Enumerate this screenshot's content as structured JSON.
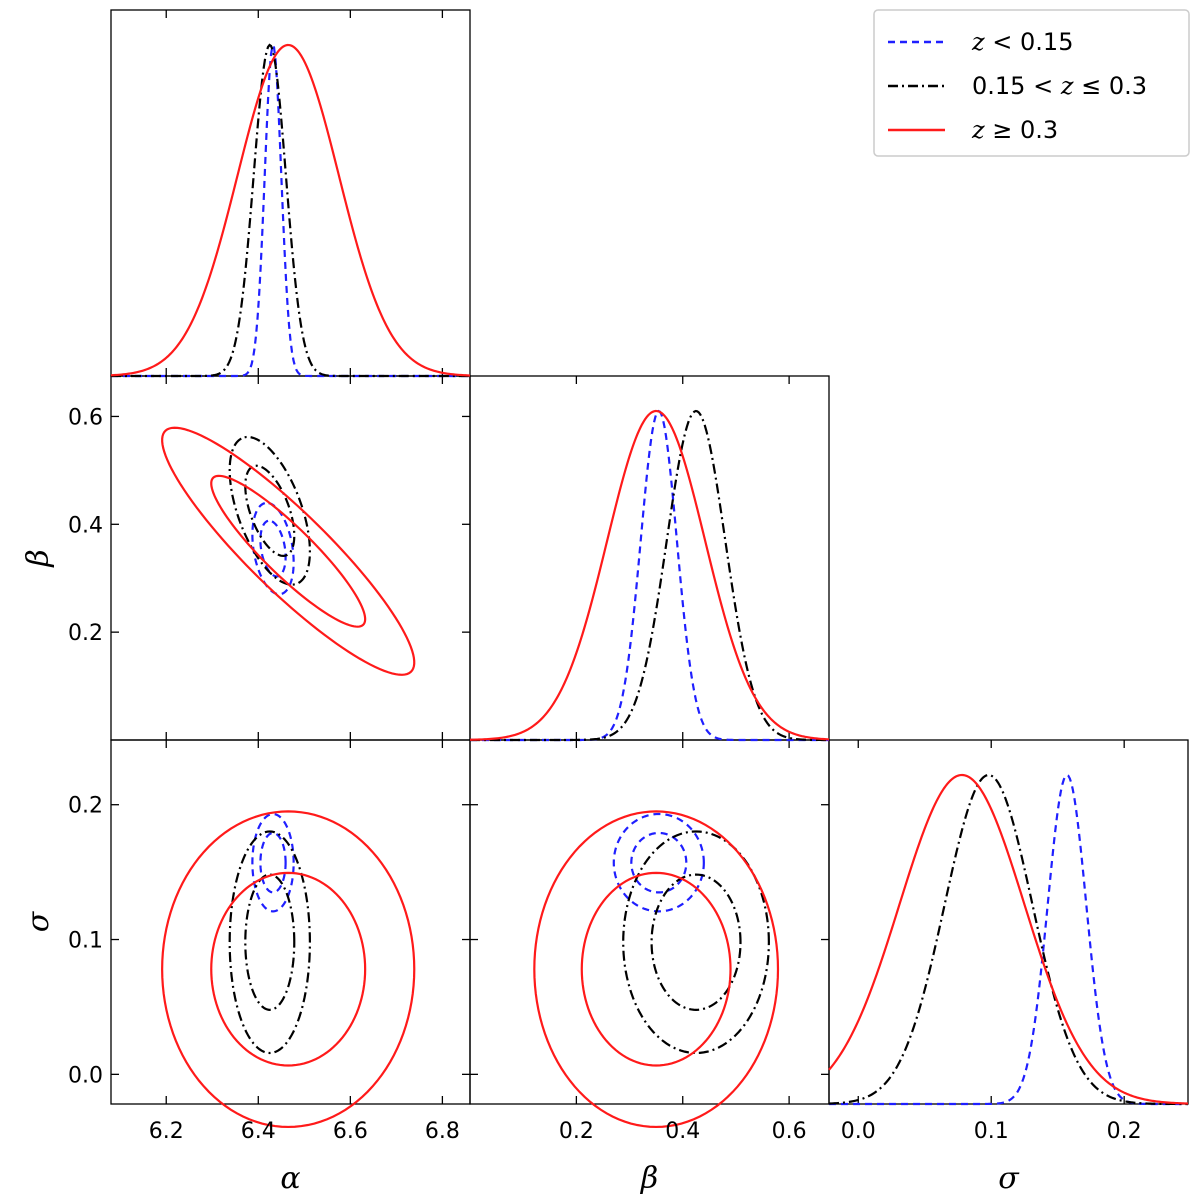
{
  "chart_data": {
    "type": "corner",
    "parameters": [
      {
        "symbol": "α",
        "range": [
          6.08,
          6.86
        ],
        "ticks": [
          "6.2",
          "6.4",
          "6.6",
          "6.8"
        ],
        "tick_values": [
          6.2,
          6.4,
          6.6,
          6.8
        ]
      },
      {
        "symbol": "β",
        "range": [
          0.0,
          0.675
        ],
        "ticks": [
          "0.2",
          "0.4",
          "0.6"
        ],
        "tick_values": [
          0.2,
          0.4,
          0.6
        ]
      },
      {
        "symbol": "σ",
        "range": [
          -0.022,
          0.248
        ],
        "ticks": [
          "0.0",
          "0.1",
          "0.2"
        ],
        "tick_values": [
          0.0,
          0.1,
          0.2
        ]
      }
    ],
    "legend": {
      "position": "top-right",
      "entries": [
        {
          "pre": "",
          "var": "z",
          "post": " < 0.15"
        },
        {
          "pre": "0.15 < ",
          "var": "z",
          "post": " ≤ 0.3"
        },
        {
          "pre": "",
          "var": "z",
          "post": " ≥ 0.3"
        }
      ]
    },
    "series": [
      {
        "color": "#1f1fff",
        "dash": "7,5",
        "mean": [
          6.432,
          0.355,
          0.157
        ],
        "sigma": [
          0.018,
          0.034,
          0.0145
        ],
        "rho": {
          "ab": -0.3,
          "as": 0.0,
          "bs": 0.0
        }
      },
      {
        "color": "#000000",
        "dash": "10,4,2,4",
        "mean": [
          6.425,
          0.425,
          0.098
        ],
        "sigma": [
          0.035,
          0.055,
          0.033
        ],
        "rho": {
          "ab": -0.55,
          "as": 0.0,
          "bs": 0.0
        }
      },
      {
        "color": "#ff1a1a",
        "dash": "",
        "mean": [
          6.465,
          0.35,
          0.078
        ],
        "sigma": [
          0.11,
          0.092,
          0.047
        ],
        "rho": {
          "ab": -0.9,
          "as": 0.0,
          "bs": 0.0
        }
      }
    ],
    "contour_levels_sigma": [
      1.52,
      2.49
    ],
    "grid": false
  }
}
